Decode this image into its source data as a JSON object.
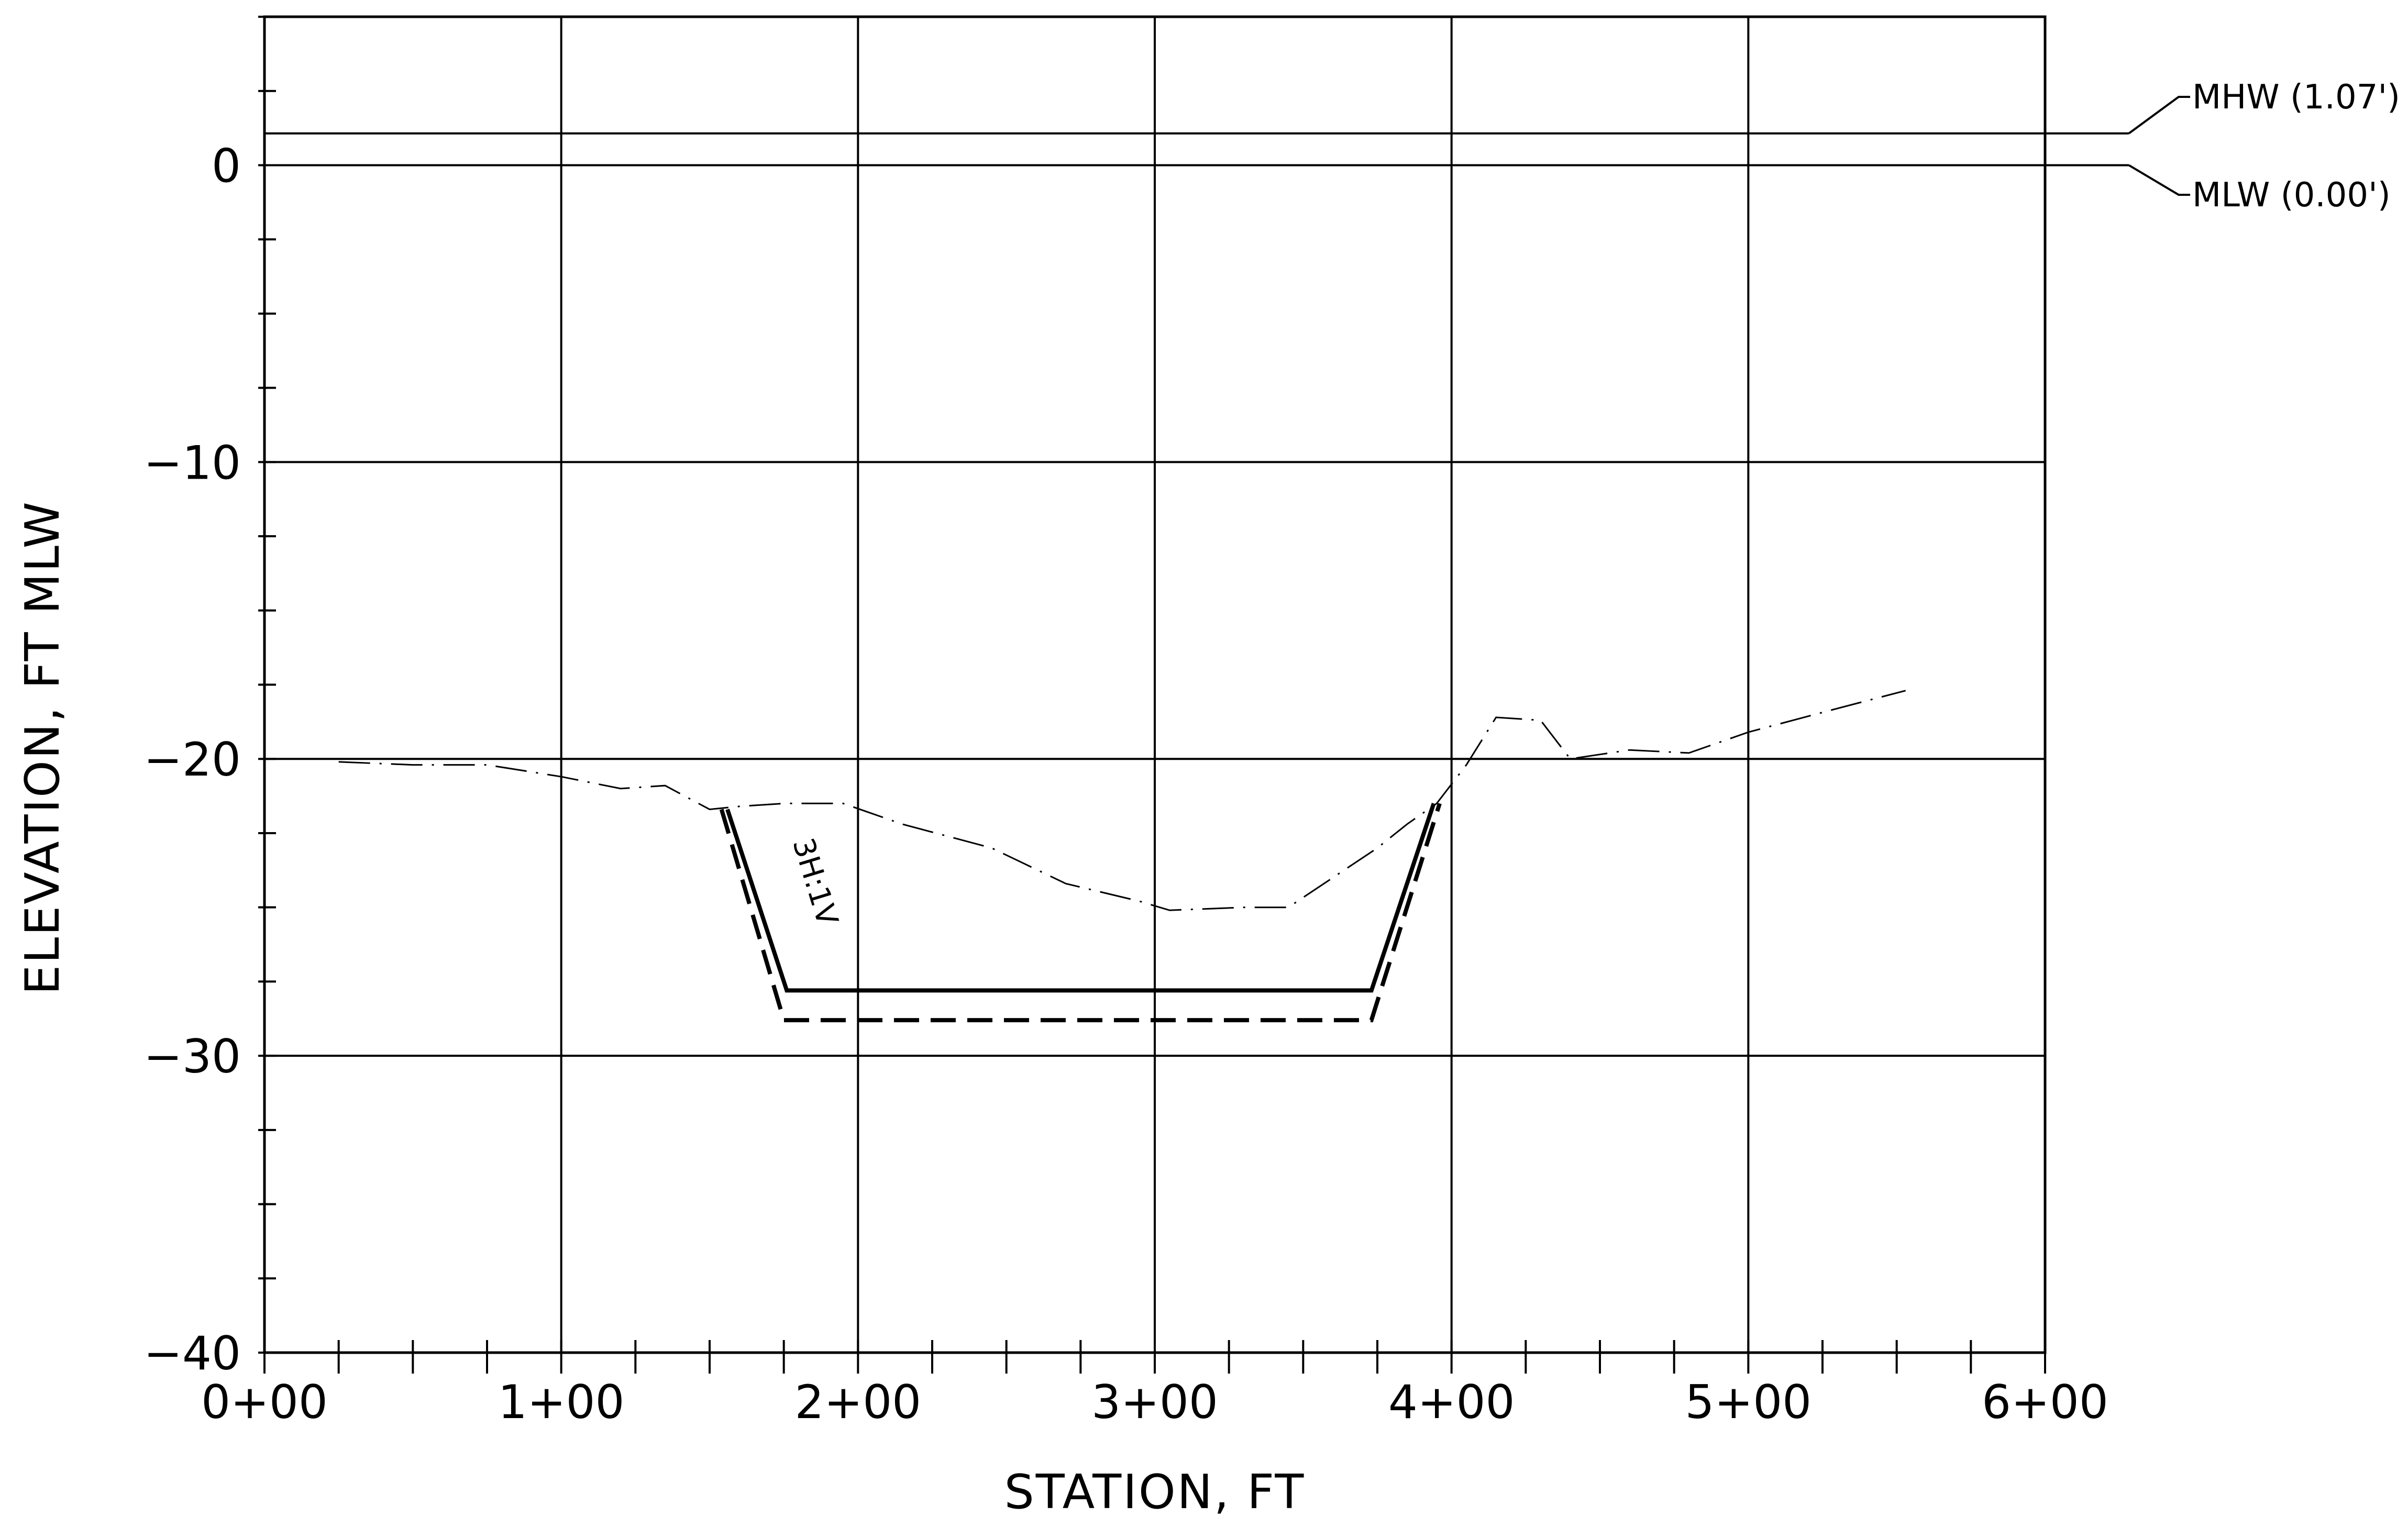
{
  "chart_data": {
    "type": "line",
    "xlabel": "STATION, FT",
    "ylabel": "ELEVATION, FT MLW",
    "xlim": [
      0,
      600
    ],
    "ylim": [
      -40,
      5
    ],
    "grid": true,
    "x_ticks": [
      0,
      100,
      200,
      300,
      400,
      500,
      600
    ],
    "x_tick_labels": [
      "0+00",
      "1+00",
      "2+00",
      "3+00",
      "4+00",
      "5+00",
      "6+00"
    ],
    "y_ticks": [
      0,
      -10,
      -20,
      -30,
      -40
    ],
    "y_tick_labels": [
      "0",
      "−10",
      "−20",
      "−30",
      "−40"
    ],
    "water_levels": [
      {
        "name": "MHW",
        "label": "MHW (1.07')",
        "elevation": 1.07
      },
      {
        "name": "MLW",
        "label": "MLW (0.00')",
        "elevation": 0.0
      }
    ],
    "series": [
      {
        "style": "dash-dot",
        "x": [
          25,
          50,
          75,
          100,
          120,
          135,
          150,
          160,
          175,
          195,
          215,
          245,
          270,
          295,
          305,
          330,
          345,
          360,
          375,
          385,
          395,
          405,
          415,
          430,
          440,
          460,
          480,
          500,
          530,
          553
        ],
        "y": [
          -20.1,
          -20.2,
          -20.2,
          -20.6,
          -21.0,
          -20.9,
          -21.7,
          -21.6,
          -21.5,
          -21.5,
          -22.2,
          -23.0,
          -24.2,
          -24.8,
          -25.1,
          -25.0,
          -25.0,
          -24.0,
          -23.0,
          -22.2,
          -21.5,
          -20.2,
          -18.6,
          -18.7,
          -20.0,
          -19.7,
          -19.8,
          -19.1,
          -18.3,
          -17.7
        ]
      },
      {
        "style": "solid",
        "x": [
          156,
          176,
          373,
          394
        ],
        "y": [
          -21.7,
          -27.8,
          -27.8,
          -21.5
        ]
      },
      {
        "style": "dashed",
        "x": [
          154,
          175,
          373,
          396
        ],
        "y": [
          -21.7,
          -28.8,
          -28.8,
          -21.5
        ]
      }
    ],
    "annotations": [
      {
        "text": "3H:1V",
        "x": 178,
        "y": -22.8
      }
    ]
  }
}
